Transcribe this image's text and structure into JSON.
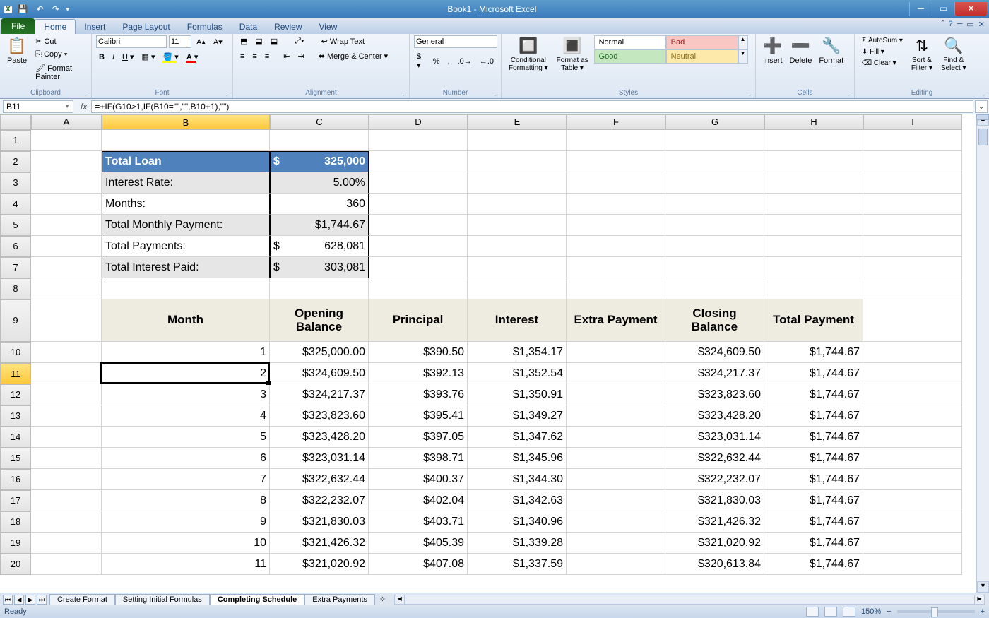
{
  "window": {
    "title": "Book1 - Microsoft Excel"
  },
  "qat": {
    "save": "💾",
    "undo": "↶",
    "redo": "↷"
  },
  "tabs": {
    "file": "File",
    "items": [
      "Home",
      "Insert",
      "Page Layout",
      "Formulas",
      "Data",
      "Review",
      "View"
    ],
    "active": "Home"
  },
  "ribbon": {
    "clipboard": {
      "label": "Clipboard",
      "paste": "Paste",
      "cut": "Cut",
      "copy": "Copy ▾",
      "painter": "Format Painter"
    },
    "font": {
      "label": "Font",
      "name": "Calibri",
      "size": "11"
    },
    "alignment": {
      "label": "Alignment",
      "wrap": "Wrap Text",
      "merge": "Merge & Center ▾"
    },
    "number": {
      "label": "Number",
      "format": "General"
    },
    "stylesGrp": {
      "label": "Styles",
      "cond": "Conditional\nFormatting ▾",
      "fmtTable": "Format as\nTable ▾",
      "cells": {
        "normal": "Normal",
        "bad": "Bad",
        "good": "Good",
        "neutral": "Neutral"
      }
    },
    "cellsGrp": {
      "label": "Cells",
      "insert": "Insert",
      "delete": "Delete",
      "format": "Format"
    },
    "editing": {
      "label": "Editing",
      "autosum": "AutoSum ▾",
      "fill": "Fill ▾",
      "clear": "Clear ▾",
      "sort": "Sort &\nFilter ▾",
      "find": "Find &\nSelect ▾"
    }
  },
  "namebox": "B11",
  "formula": "=+IF(G10>1,IF(B10=\"\",\"\",B10+1),\"\")",
  "columns": [
    "A",
    "B",
    "C",
    "D",
    "E",
    "F",
    "G",
    "H",
    "I"
  ],
  "selectedCol": "B",
  "selectedRow": "11",
  "loan": {
    "totalLoanLabel": "Total Loan",
    "totalLoanCur": "$",
    "totalLoanVal": "325,000",
    "rateLabel": "Interest Rate:",
    "rateVal": "5.00%",
    "monthsLabel": "Months:",
    "monthsVal": "360",
    "pmtLabel": "Total Monthly  Payment:",
    "pmtVal": "$1,744.67",
    "totPayLabel": "Total Payments:",
    "totPayCur": "$",
    "totPayVal": "628,081",
    "totIntLabel": "Total Interest Paid:",
    "totIntCur": "$",
    "totIntVal": "303,081"
  },
  "headers": {
    "month": "Month",
    "opening": "Opening Balance",
    "principal": "Principal",
    "interest": "Interest",
    "extra": "Extra Payment",
    "closing": "Closing Balance",
    "total": "Total Payment"
  },
  "rows": [
    {
      "n": "1",
      "ob": "$325,000.00",
      "p": "$390.50",
      "i": "$1,354.17",
      "e": "",
      "cb": "$324,609.50",
      "t": "$1,744.67"
    },
    {
      "n": "2",
      "ob": "$324,609.50",
      "p": "$392.13",
      "i": "$1,352.54",
      "e": "",
      "cb": "$324,217.37",
      "t": "$1,744.67"
    },
    {
      "n": "3",
      "ob": "$324,217.37",
      "p": "$393.76",
      "i": "$1,350.91",
      "e": "",
      "cb": "$323,823.60",
      "t": "$1,744.67"
    },
    {
      "n": "4",
      "ob": "$323,823.60",
      "p": "$395.41",
      "i": "$1,349.27",
      "e": "",
      "cb": "$323,428.20",
      "t": "$1,744.67"
    },
    {
      "n": "5",
      "ob": "$323,428.20",
      "p": "$397.05",
      "i": "$1,347.62",
      "e": "",
      "cb": "$323,031.14",
      "t": "$1,744.67"
    },
    {
      "n": "6",
      "ob": "$323,031.14",
      "p": "$398.71",
      "i": "$1,345.96",
      "e": "",
      "cb": "$322,632.44",
      "t": "$1,744.67"
    },
    {
      "n": "7",
      "ob": "$322,632.44",
      "p": "$400.37",
      "i": "$1,344.30",
      "e": "",
      "cb": "$322,232.07",
      "t": "$1,744.67"
    },
    {
      "n": "8",
      "ob": "$322,232.07",
      "p": "$402.04",
      "i": "$1,342.63",
      "e": "",
      "cb": "$321,830.03",
      "t": "$1,744.67"
    },
    {
      "n": "9",
      "ob": "$321,830.03",
      "p": "$403.71",
      "i": "$1,340.96",
      "e": "",
      "cb": "$321,426.32",
      "t": "$1,744.67"
    },
    {
      "n": "10",
      "ob": "$321,426.32",
      "p": "$405.39",
      "i": "$1,339.28",
      "e": "",
      "cb": "$321,020.92",
      "t": "$1,744.67"
    },
    {
      "n": "11",
      "ob": "$321,020.92",
      "p": "$407.08",
      "i": "$1,337.59",
      "e": "",
      "cb": "$320,613.84",
      "t": "$1,744.67"
    }
  ],
  "sheets": {
    "tabs": [
      "Create Format",
      "Setting Initial Formulas",
      "Completing Schedule",
      "Extra Payments"
    ],
    "active": "Completing Schedule"
  },
  "status": {
    "ready": "Ready",
    "zoom": "150%"
  }
}
